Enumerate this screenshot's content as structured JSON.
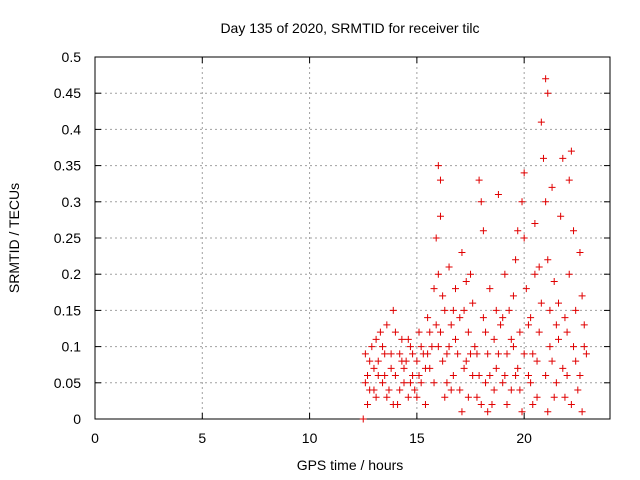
{
  "chart_data": {
    "type": "scatter",
    "title": "Day 135 of 2020, SRMTID for receiver tilc",
    "xlabel": "GPS time / hours",
    "ylabel": "SRMTID / TECUs",
    "xlim": [
      0,
      24
    ],
    "ylim": [
      0,
      0.5
    ],
    "xticks": [
      0,
      5,
      10,
      15,
      20
    ],
    "yticks": [
      0,
      0.05,
      0.1,
      0.15,
      0.2,
      0.25,
      0.3,
      0.35,
      0.4,
      0.45,
      0.5
    ],
    "xtick_labels": [
      "0",
      "5",
      "10",
      "15",
      "20"
    ],
    "ytick_labels": [
      "0",
      "0.05",
      "0.1",
      "0.15",
      "0.2",
      "0.25",
      "0.3",
      "0.35",
      "0.4",
      "0.45",
      "0.5"
    ],
    "grid": true,
    "marker": "+",
    "color": "#e00000",
    "series": [
      {
        "name": "SRMTID",
        "points": [
          [
            12.5,
            0.0
          ],
          [
            12.6,
            0.09
          ],
          [
            12.7,
            0.06
          ],
          [
            12.8,
            0.04
          ],
          [
            12.9,
            0.1
          ],
          [
            13.0,
            0.07
          ],
          [
            13.1,
            0.03
          ],
          [
            13.2,
            0.08
          ],
          [
            13.3,
            0.12
          ],
          [
            13.4,
            0.05
          ],
          [
            13.5,
            0.09
          ],
          [
            13.6,
            0.13
          ],
          [
            13.7,
            0.04
          ],
          [
            13.8,
            0.07
          ],
          [
            13.9,
            0.15
          ],
          [
            14.0,
            0.06
          ],
          [
            14.1,
            0.02
          ],
          [
            14.2,
            0.09
          ],
          [
            14.3,
            0.11
          ],
          [
            14.4,
            0.05
          ],
          [
            14.5,
            0.08
          ],
          [
            14.6,
            0.03
          ],
          [
            14.7,
            0.1
          ],
          [
            14.8,
            0.06
          ],
          [
            14.9,
            0.04
          ],
          [
            15.0,
            0.08
          ],
          [
            15.1,
            0.12
          ],
          [
            15.2,
            0.05
          ],
          [
            15.3,
            0.09
          ],
          [
            15.4,
            0.02
          ],
          [
            15.5,
            0.14
          ],
          [
            15.6,
            0.07
          ],
          [
            15.7,
            0.1
          ],
          [
            15.8,
            0.18
          ],
          [
            15.9,
            0.25
          ],
          [
            16.0,
            0.35
          ],
          [
            16.0,
            0.2
          ],
          [
            16.1,
            0.28
          ],
          [
            16.1,
            0.12
          ],
          [
            16.2,
            0.08
          ],
          [
            16.3,
            0.15
          ],
          [
            16.4,
            0.05
          ],
          [
            16.5,
            0.1
          ],
          [
            16.6,
            0.13
          ],
          [
            16.7,
            0.06
          ],
          [
            16.8,
            0.18
          ],
          [
            16.9,
            0.09
          ],
          [
            17.0,
            0.04
          ],
          [
            17.1,
            0.23
          ],
          [
            17.2,
            0.15
          ],
          [
            17.3,
            0.08
          ],
          [
            17.4,
            0.12
          ],
          [
            17.5,
            0.2
          ],
          [
            17.6,
            0.06
          ],
          [
            17.7,
            0.1
          ],
          [
            17.8,
            0.03
          ],
          [
            17.9,
            0.33
          ],
          [
            18.0,
            0.3
          ],
          [
            18.1,
            0.14
          ],
          [
            18.2,
            0.05
          ],
          [
            18.3,
            0.09
          ],
          [
            18.4,
            0.18
          ],
          [
            18.5,
            0.02
          ],
          [
            18.6,
            0.11
          ],
          [
            18.7,
            0.07
          ],
          [
            18.8,
            0.31
          ],
          [
            18.9,
            0.13
          ],
          [
            19.0,
            0.05
          ],
          [
            19.1,
            0.2
          ],
          [
            19.2,
            0.09
          ],
          [
            19.3,
            0.15
          ],
          [
            19.4,
            0.04
          ],
          [
            19.5,
            0.1
          ],
          [
            19.6,
            0.22
          ],
          [
            19.7,
            0.07
          ],
          [
            19.8,
            0.12
          ],
          [
            19.9,
            0.3
          ],
          [
            20.0,
            0.25
          ],
          [
            20.0,
            0.34
          ],
          [
            20.1,
            0.18
          ],
          [
            20.2,
            0.06
          ],
          [
            20.3,
            0.14
          ],
          [
            20.4,
            0.09
          ],
          [
            20.5,
            0.2
          ],
          [
            20.6,
            0.03
          ],
          [
            20.7,
            0.12
          ],
          [
            20.8,
            0.41
          ],
          [
            20.9,
            0.36
          ],
          [
            21.0,
            0.47
          ],
          [
            21.0,
            0.3
          ],
          [
            21.1,
            0.45
          ],
          [
            21.1,
            0.22
          ],
          [
            21.2,
            0.15
          ],
          [
            21.3,
            0.08
          ],
          [
            21.4,
            0.19
          ],
          [
            21.5,
            0.05
          ],
          [
            21.6,
            0.11
          ],
          [
            21.7,
            0.28
          ],
          [
            21.8,
            0.36
          ],
          [
            21.9,
            0.14
          ],
          [
            22.0,
            0.06
          ],
          [
            22.1,
            0.2
          ],
          [
            22.2,
            0.37
          ],
          [
            22.3,
            0.1
          ],
          [
            22.4,
            0.15
          ],
          [
            22.5,
            0.04
          ],
          [
            22.6,
            0.23
          ],
          [
            22.7,
            0.17
          ],
          [
            22.8,
            0.13
          ],
          [
            22.9,
            0.09
          ],
          [
            12.6,
            0.05
          ],
          [
            12.8,
            0.08
          ],
          [
            13.0,
            0.04
          ],
          [
            13.2,
            0.06
          ],
          [
            13.4,
            0.1
          ],
          [
            13.6,
            0.03
          ],
          [
            13.8,
            0.09
          ],
          [
            14.0,
            0.12
          ],
          [
            14.2,
            0.04
          ],
          [
            14.4,
            0.07
          ],
          [
            14.6,
            0.11
          ],
          [
            14.8,
            0.09
          ],
          [
            15.0,
            0.03
          ],
          [
            15.2,
            0.1
          ],
          [
            15.4,
            0.07
          ],
          [
            15.6,
            0.12
          ],
          [
            15.8,
            0.05
          ],
          [
            16.0,
            0.1
          ],
          [
            16.2,
            0.17
          ],
          [
            16.4,
            0.09
          ],
          [
            16.6,
            0.04
          ],
          [
            16.8,
            0.11
          ],
          [
            17.0,
            0.14
          ],
          [
            17.2,
            0.07
          ],
          [
            17.4,
            0.03
          ],
          [
            17.6,
            0.16
          ],
          [
            17.8,
            0.09
          ],
          [
            18.0,
            0.02
          ],
          [
            18.2,
            0.12
          ],
          [
            18.4,
            0.06
          ],
          [
            18.6,
            0.04
          ],
          [
            18.8,
            0.09
          ],
          [
            19.0,
            0.14
          ],
          [
            19.2,
            0.02
          ],
          [
            19.4,
            0.11
          ],
          [
            19.6,
            0.06
          ],
          [
            19.8,
            0.04
          ],
          [
            20.0,
            0.09
          ],
          [
            20.2,
            0.13
          ],
          [
            20.4,
            0.02
          ],
          [
            20.6,
            0.08
          ],
          [
            20.8,
            0.16
          ],
          [
            21.0,
            0.06
          ],
          [
            21.2,
            0.1
          ],
          [
            21.4,
            0.03
          ],
          [
            21.6,
            0.16
          ],
          [
            21.8,
            0.07
          ],
          [
            22.0,
            0.12
          ],
          [
            22.2,
            0.02
          ],
          [
            22.4,
            0.08
          ],
          [
            22.6,
            0.06
          ],
          [
            22.8,
            0.1
          ],
          [
            12.7,
            0.02
          ],
          [
            13.1,
            0.11
          ],
          [
            13.5,
            0.06
          ],
          [
            13.9,
            0.02
          ],
          [
            14.3,
            0.08
          ],
          [
            14.7,
            0.05
          ],
          [
            15.1,
            0.06
          ],
          [
            15.5,
            0.09
          ],
          [
            15.9,
            0.13
          ],
          [
            16.3,
            0.03
          ],
          [
            16.7,
            0.15
          ],
          [
            17.1,
            0.01
          ],
          [
            17.5,
            0.09
          ],
          [
            17.9,
            0.06
          ],
          [
            18.3,
            0.01
          ],
          [
            18.7,
            0.15
          ],
          [
            19.1,
            0.06
          ],
          [
            19.5,
            0.17
          ],
          [
            19.9,
            0.01
          ],
          [
            20.3,
            0.05
          ],
          [
            20.7,
            0.21
          ],
          [
            21.1,
            0.01
          ],
          [
            21.5,
            0.13
          ],
          [
            21.9,
            0.03
          ],
          [
            22.3,
            0.26
          ],
          [
            22.7,
            0.01
          ],
          [
            18.1,
            0.26
          ],
          [
            17.3,
            0.19
          ],
          [
            16.5,
            0.21
          ],
          [
            20.5,
            0.27
          ],
          [
            21.3,
            0.32
          ],
          [
            19.7,
            0.26
          ],
          [
            22.1,
            0.33
          ],
          [
            16.1,
            0.33
          ]
        ]
      }
    ]
  }
}
